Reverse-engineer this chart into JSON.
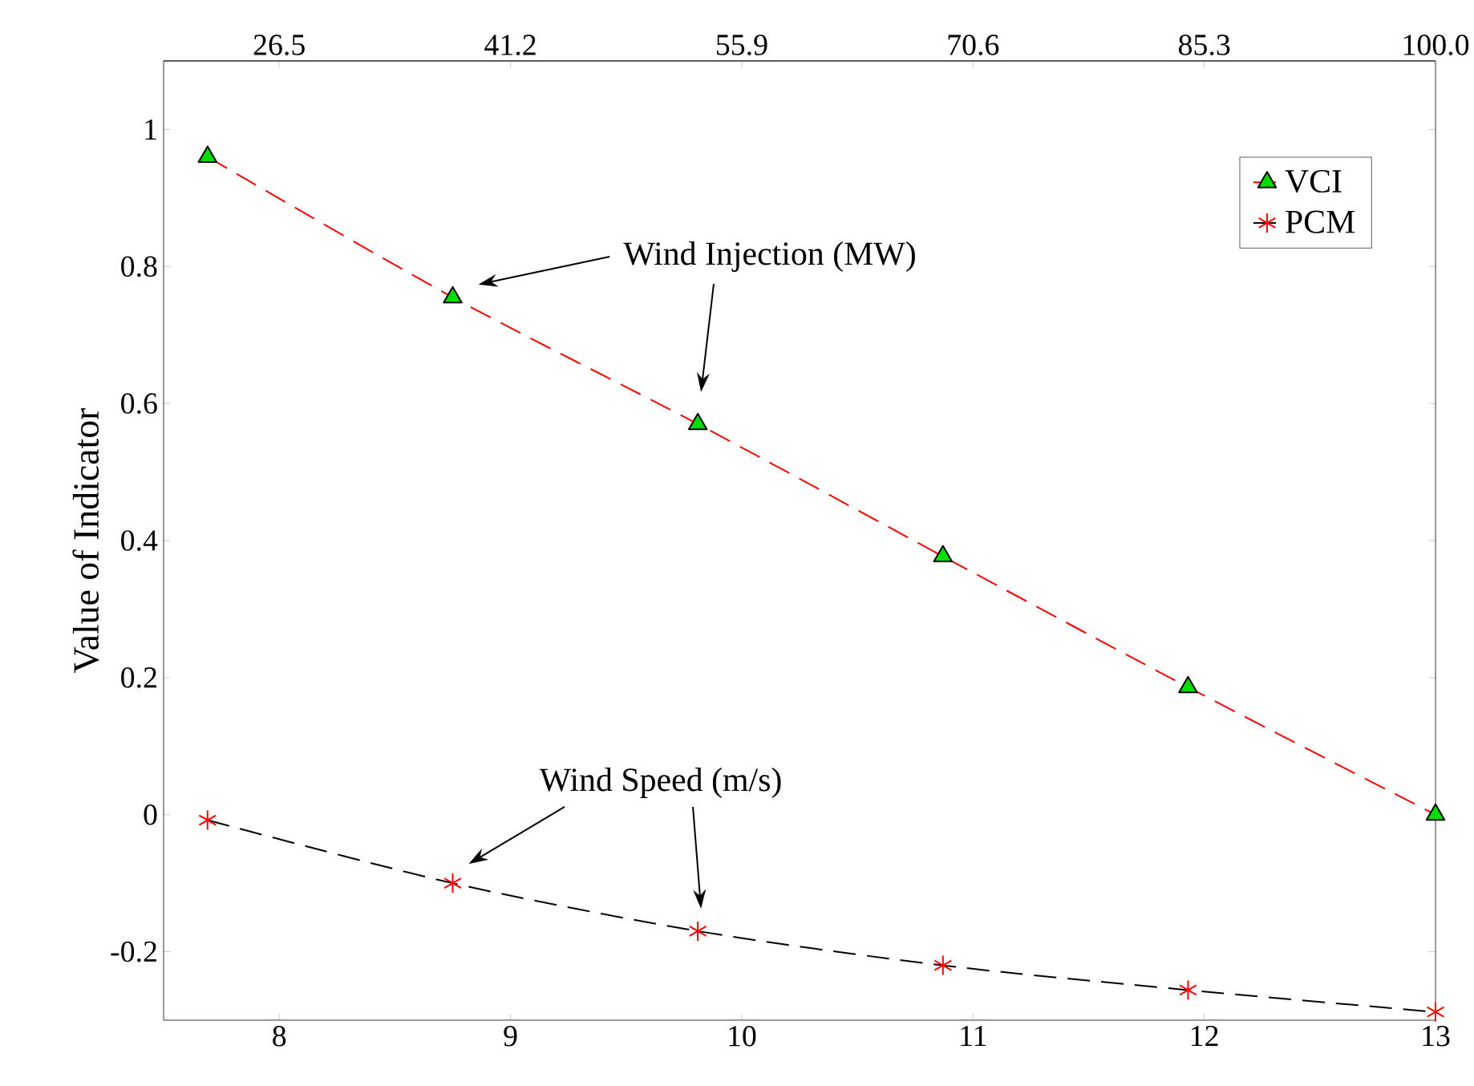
{
  "chart_data": {
    "type": "line",
    "ylabel": "Value of Indicator",
    "x": [
      7.69,
      8.75,
      9.81,
      10.87,
      11.93,
      13.0
    ],
    "xlim": [
      7.5,
      13
    ],
    "xticks": [
      8,
      9,
      10,
      11,
      12,
      13
    ],
    "x2lim": [
      19.15,
      100
    ],
    "x2ticks": [
      26.5,
      41.2,
      55.9,
      70.6,
      85.3,
      {
        "value": 100,
        "label": "100.0"
      }
    ],
    "ylim": [
      -0.3,
      1.1
    ],
    "yticks": [
      -0.2,
      0,
      0.2,
      0.4,
      0.6,
      0.8,
      1
    ],
    "series": [
      {
        "name": "VCI",
        "color": "#ff0000",
        "colors": [
          "#00dd00",
          "#00dd00",
          "#00dd00",
          "#00dd00",
          "#00dd00",
          "#00dd00"
        ],
        "marker": "triangle",
        "line_style": "dashed",
        "values": [
          0.96,
          0.755,
          0.57,
          0.377,
          0.186,
          0
        ]
      },
      {
        "name": "PCM",
        "color": "#000000",
        "colors": [
          "#ff0000",
          "#ff0000",
          "#ff0000",
          "#ff0000",
          "#ff0000",
          "#ff0000"
        ],
        "marker": "cross",
        "line_style": "dashed",
        "values": [
          -0.008,
          -0.1,
          -0.17,
          -0.22,
          -0.256,
          -0.288
        ]
      }
    ],
    "annotations": [
      "Wind Injection (MW)",
      "Wind Speed (m/s)"
    ],
    "grid": false,
    "legend": "top right"
  }
}
